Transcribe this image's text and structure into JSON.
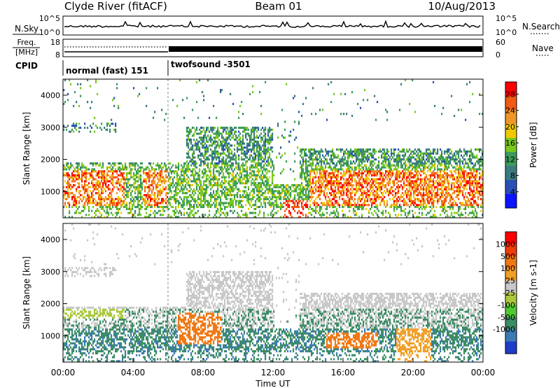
{
  "header": {
    "station": "Clyde River (fitACF)",
    "beam": "Beam 01",
    "date": "10/Aug/2013"
  },
  "strips": {
    "nsky_label": "N.Sky",
    "nsky_ticks": [
      "10^5",
      "10^0"
    ],
    "nsearch_label": "N.Search",
    "nsearch_ticks": [
      "10^5",
      "10^0"
    ],
    "freq_label_1": "Freq.",
    "freq_label_2": "[MHz]",
    "freq_ticks": [
      "18",
      "8"
    ],
    "nave_label": "Nave",
    "nave_ticks": [
      "60",
      "0"
    ],
    "cpid_label": "CPID",
    "cpid_modes": [
      "normal (fast) 151",
      "twofsound -3501"
    ]
  },
  "chart_data": [
    {
      "type": "heatmap",
      "name": "power",
      "ylabel": "Slant Range [km]",
      "xlabel": "Time UT",
      "x_ticks": [
        "00:00",
        "04:00",
        "08:00",
        "12:00",
        "16:00",
        "20:00",
        "00:00"
      ],
      "y_ticks": [
        1000,
        2000,
        3000,
        4000
      ],
      "ylim": [
        180,
        4500
      ],
      "colorbar": {
        "label": "Power [dB]",
        "ticks": [
          4,
          8,
          12,
          16,
          20,
          24,
          28
        ],
        "range": [
          0,
          31
        ]
      },
      "colors": [
        "#0a14ff",
        "#2850b4",
        "#3c7a82",
        "#3c9a5a",
        "#78c81e",
        "#f0c800",
        "#f09628",
        "#f05a14",
        "#ff0000"
      ]
    },
    {
      "type": "heatmap",
      "name": "velocity",
      "ylabel": "Slant Range [km]",
      "xlabel": "Time UT",
      "x_ticks": [
        "00:00",
        "04:00",
        "08:00",
        "12:00",
        "16:00",
        "20:00",
        "00:00"
      ],
      "y_ticks": [
        1000,
        2000,
        3000,
        4000
      ],
      "ylim": [
        180,
        4500
      ],
      "colorbar": {
        "label": "Velocity [m s-1]",
        "ticks": [
          "1000",
          "500",
          "100",
          "25",
          "-25",
          "-100",
          "-500",
          "-1000"
        ]
      },
      "colors": [
        "#1e3cc8",
        "#3c7ab4",
        "#3c8c64",
        "#50c832",
        "#aac83c",
        "#c8c8c8",
        "#f0a028",
        "#f07814",
        "#f03c0a",
        "#ff0000"
      ]
    }
  ],
  "xlabel": "Time UT"
}
